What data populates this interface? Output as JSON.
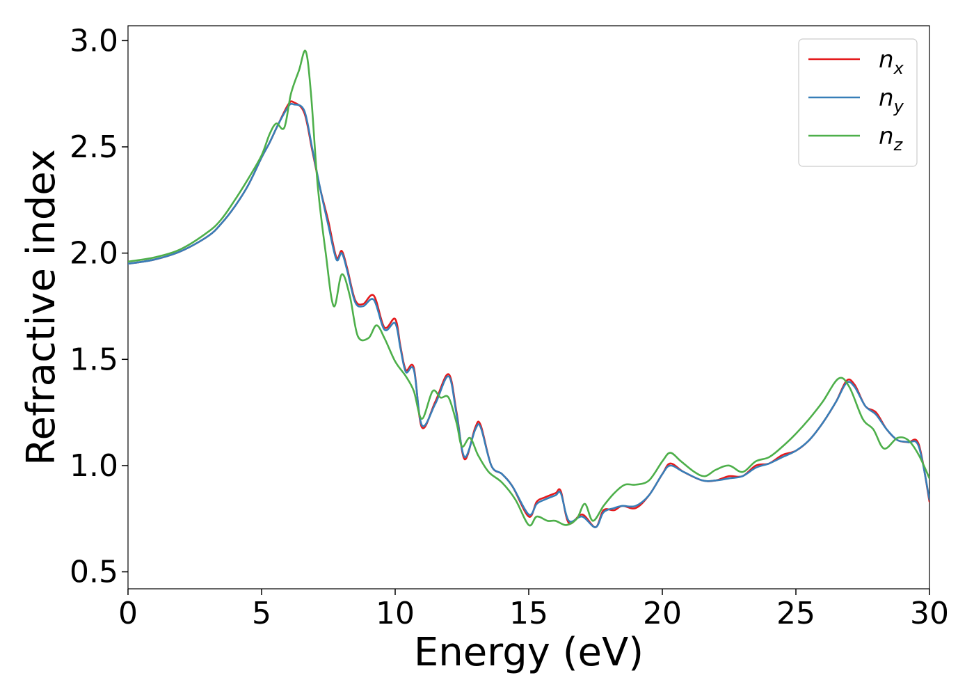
{
  "chart_data": {
    "type": "line",
    "xlabel": "Energy (eV)",
    "ylabel": "Refractive index",
    "xlim": [
      0,
      30
    ],
    "ylim": [
      0.42,
      3.07
    ],
    "xticks": [
      0,
      5,
      10,
      15,
      20,
      25,
      30
    ],
    "yticks": [
      0.5,
      1.0,
      1.5,
      2.0,
      2.5,
      3.0
    ],
    "xtick_labels": [
      "0",
      "5",
      "10",
      "15",
      "20",
      "25",
      "30"
    ],
    "ytick_labels": [
      "0.5",
      "1.0",
      "1.5",
      "2.0",
      "2.5",
      "3.0"
    ],
    "grid": false,
    "legend_position": "top-right",
    "series": [
      {
        "name": "n_x",
        "label_main": "n",
        "label_sub": "x",
        "color": "#e41a1c",
        "x": [
          0,
          1,
          2,
          3,
          3.5,
          4,
          4.5,
          5,
          5.3,
          5.6,
          6.0,
          6.2,
          6.6,
          6.9,
          7.2,
          7.5,
          7.8,
          8.0,
          8.2,
          8.5,
          8.8,
          9.2,
          9.6,
          10.0,
          10.2,
          10.4,
          10.7,
          11.0,
          11.5,
          12.0,
          12.3,
          12.6,
          13.0,
          13.2,
          13.6,
          14.0,
          14.4,
          15.0,
          15.3,
          15.6,
          16.0,
          16.2,
          16.5,
          17.0,
          17.5,
          17.8,
          18.2,
          18.5,
          19.0,
          19.5,
          20.0,
          20.3,
          20.8,
          21.5,
          22.0,
          22.5,
          23.0,
          23.5,
          24.0,
          24.5,
          25.0,
          25.5,
          26.0,
          26.5,
          26.9,
          27.2,
          27.6,
          28.0,
          28.4,
          28.8,
          29.2,
          29.6,
          30.0
        ],
        "y": [
          1.95,
          1.97,
          2.01,
          2.08,
          2.14,
          2.22,
          2.32,
          2.45,
          2.52,
          2.6,
          2.7,
          2.71,
          2.66,
          2.48,
          2.3,
          2.15,
          1.98,
          2.01,
          1.93,
          1.78,
          1.76,
          1.8,
          1.65,
          1.69,
          1.56,
          1.45,
          1.46,
          1.18,
          1.3,
          1.43,
          1.25,
          1.03,
          1.18,
          1.19,
          1.0,
          0.96,
          0.9,
          0.76,
          0.83,
          0.85,
          0.87,
          0.88,
          0.73,
          0.77,
          0.71,
          0.79,
          0.79,
          0.81,
          0.8,
          0.86,
          0.96,
          1.01,
          0.97,
          0.93,
          0.93,
          0.95,
          0.95,
          1.0,
          1.01,
          1.05,
          1.07,
          1.12,
          1.2,
          1.3,
          1.4,
          1.38,
          1.28,
          1.25,
          1.17,
          1.12,
          1.11,
          1.1,
          0.83
        ]
      },
      {
        "name": "n_y",
        "label_main": "n",
        "label_sub": "y",
        "color": "#377eb8",
        "x": [
          0,
          1,
          2,
          3,
          3.5,
          4,
          4.5,
          5,
          5.3,
          5.6,
          6.0,
          6.2,
          6.6,
          6.9,
          7.2,
          7.5,
          7.8,
          8.0,
          8.2,
          8.5,
          8.8,
          9.2,
          9.6,
          10.0,
          10.2,
          10.4,
          10.7,
          11.0,
          11.5,
          12.0,
          12.3,
          12.6,
          13.0,
          13.2,
          13.6,
          14.0,
          14.4,
          15.0,
          15.3,
          15.6,
          16.0,
          16.2,
          16.5,
          17.0,
          17.5,
          17.8,
          18.2,
          18.5,
          19.0,
          19.5,
          20.0,
          20.3,
          20.8,
          21.5,
          22.0,
          22.5,
          23.0,
          23.5,
          24.0,
          24.5,
          25.0,
          25.5,
          26.0,
          26.5,
          26.9,
          27.2,
          27.6,
          28.0,
          28.4,
          28.8,
          29.2,
          29.6,
          30.0
        ],
        "y": [
          1.95,
          1.97,
          2.01,
          2.08,
          2.14,
          2.22,
          2.32,
          2.45,
          2.52,
          2.6,
          2.69,
          2.7,
          2.67,
          2.49,
          2.3,
          2.13,
          1.97,
          2.0,
          1.92,
          1.77,
          1.75,
          1.78,
          1.64,
          1.67,
          1.55,
          1.44,
          1.45,
          1.19,
          1.29,
          1.42,
          1.24,
          1.04,
          1.17,
          1.18,
          1.0,
          0.96,
          0.9,
          0.77,
          0.82,
          0.84,
          0.86,
          0.87,
          0.74,
          0.76,
          0.71,
          0.78,
          0.8,
          0.81,
          0.81,
          0.86,
          0.96,
          1.0,
          0.97,
          0.93,
          0.93,
          0.94,
          0.95,
          0.99,
          1.01,
          1.04,
          1.07,
          1.12,
          1.2,
          1.3,
          1.39,
          1.37,
          1.28,
          1.24,
          1.17,
          1.12,
          1.11,
          1.09,
          0.84
        ]
      },
      {
        "name": "n_z",
        "label_main": "n",
        "label_sub": "z",
        "color": "#4daf4a",
        "x": [
          0,
          1,
          2,
          3,
          3.5,
          4,
          4.5,
          5,
          5.3,
          5.55,
          5.85,
          6.1,
          6.4,
          6.65,
          6.85,
          7.1,
          7.4,
          7.7,
          8.0,
          8.3,
          8.6,
          9.0,
          9.3,
          9.6,
          10.0,
          10.4,
          10.7,
          11.0,
          11.4,
          11.7,
          12.0,
          12.3,
          12.5,
          12.8,
          13.1,
          13.5,
          14.0,
          14.5,
          15.0,
          15.3,
          15.7,
          16.0,
          16.4,
          16.8,
          17.1,
          17.4,
          17.8,
          18.2,
          18.6,
          19.0,
          19.5,
          20.0,
          20.3,
          20.7,
          21.2,
          21.6,
          22.0,
          22.5,
          23.0,
          23.5,
          24.0,
          24.5,
          25.0,
          25.5,
          26.0,
          26.6,
          27.0,
          27.5,
          27.9,
          28.3,
          28.8,
          29.2,
          29.6,
          30.0
        ],
        "y": [
          1.96,
          1.98,
          2.02,
          2.1,
          2.16,
          2.25,
          2.35,
          2.46,
          2.56,
          2.61,
          2.59,
          2.75,
          2.86,
          2.95,
          2.75,
          2.32,
          2.0,
          1.75,
          1.9,
          1.8,
          1.61,
          1.6,
          1.66,
          1.6,
          1.49,
          1.42,
          1.35,
          1.22,
          1.35,
          1.32,
          1.32,
          1.2,
          1.09,
          1.13,
          1.05,
          0.97,
          0.92,
          0.84,
          0.72,
          0.76,
          0.74,
          0.74,
          0.72,
          0.75,
          0.82,
          0.74,
          0.81,
          0.87,
          0.91,
          0.91,
          0.93,
          1.02,
          1.06,
          1.02,
          0.97,
          0.95,
          0.98,
          1.0,
          0.97,
          1.02,
          1.04,
          1.09,
          1.15,
          1.22,
          1.3,
          1.41,
          1.37,
          1.22,
          1.17,
          1.08,
          1.13,
          1.12,
          1.05,
          0.94
        ]
      }
    ]
  }
}
